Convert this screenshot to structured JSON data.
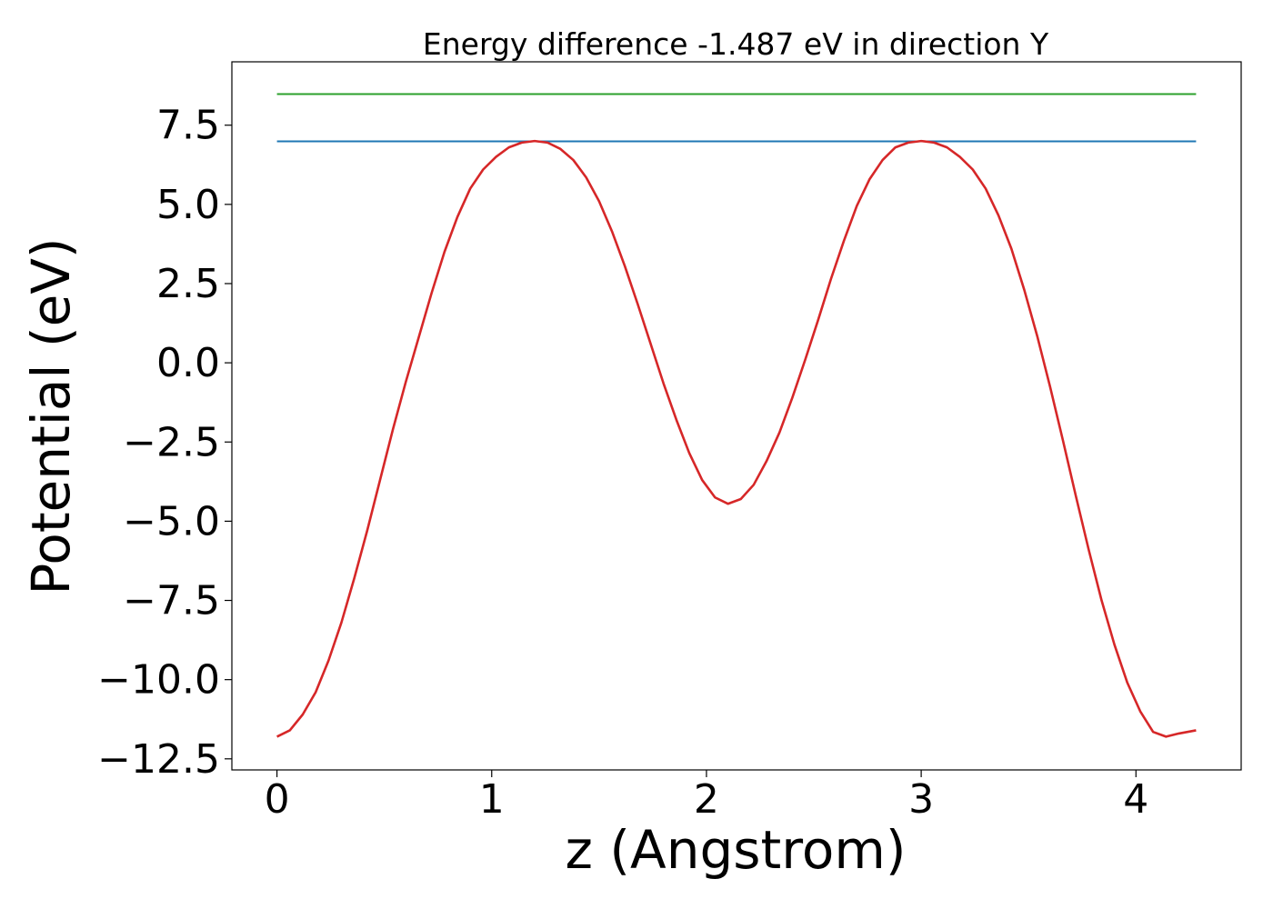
{
  "chart_data": {
    "type": "line",
    "title": "Energy difference -1.487 eV in direction Y",
    "xlabel": "z (Angstrom)",
    "ylabel": "Potential (eV)",
    "xlim": [
      -0.21,
      4.49
    ],
    "ylim": [
      -12.85,
      9.5
    ],
    "xticks": [
      0,
      1,
      2,
      3,
      4
    ],
    "xtick_labels": [
      "0",
      "1",
      "2",
      "3",
      "4"
    ],
    "yticks": [
      7.5,
      5.0,
      2.5,
      0.0,
      -2.5,
      -5.0,
      -7.5,
      -10.0,
      -12.5
    ],
    "ytick_labels": [
      "7.5",
      "5.0",
      "2.5",
      "0.0",
      "−2.5",
      "−5.0",
      "−7.5",
      "−10.0",
      "−12.5"
    ],
    "grid": false,
    "series": [
      {
        "color": "#d62728",
        "x": [
          0,
          0.06,
          0.12,
          0.18,
          0.24,
          0.3,
          0.36,
          0.42,
          0.48,
          0.54,
          0.6,
          0.66,
          0.72,
          0.78,
          0.84,
          0.9,
          0.96,
          1.02,
          1.08,
          1.14,
          1.2,
          1.26,
          1.32,
          1.38,
          1.44,
          1.5,
          1.56,
          1.62,
          1.68,
          1.74,
          1.8,
          1.86,
          1.92,
          1.98,
          2.04,
          2.1,
          2.16,
          2.22,
          2.28,
          2.34,
          2.4,
          2.46,
          2.52,
          2.58,
          2.64,
          2.7,
          2.76,
          2.82,
          2.88,
          2.94,
          3.0,
          3.06,
          3.12,
          3.18,
          3.24,
          3.3,
          3.36,
          3.42,
          3.48,
          3.54,
          3.6,
          3.66,
          3.72,
          3.78,
          3.84,
          3.9,
          3.96,
          4.02,
          4.08,
          4.14,
          4.2,
          4.28
        ],
        "y": [
          -11.8,
          -11.6,
          -11.1,
          -10.4,
          -9.4,
          -8.2,
          -6.8,
          -5.3,
          -3.7,
          -2.1,
          -0.6,
          0.8,
          2.2,
          3.5,
          4.6,
          5.5,
          6.1,
          6.5,
          6.8,
          6.95,
          7.0,
          6.95,
          6.75,
          6.4,
          5.85,
          5.1,
          4.15,
          3.05,
          1.85,
          0.6,
          -0.65,
          -1.8,
          -2.85,
          -3.7,
          -4.25,
          -4.45,
          -4.3,
          -3.85,
          -3.1,
          -2.2,
          -1.1,
          0.1,
          1.35,
          2.65,
          3.85,
          4.95,
          5.8,
          6.4,
          6.8,
          6.95,
          7.0,
          6.95,
          6.8,
          6.5,
          6.1,
          5.5,
          4.65,
          3.6,
          2.3,
          0.85,
          -0.75,
          -2.45,
          -4.2,
          -5.9,
          -7.5,
          -8.9,
          -10.1,
          -11.0,
          -11.65,
          -11.8,
          -11.7,
          -11.6
        ]
      },
      {
        "color": "#1f77b4",
        "x": [
          0,
          4.28
        ],
        "y": [
          6.99,
          6.99
        ]
      },
      {
        "color": "#2ca02c",
        "x": [
          0,
          4.28
        ],
        "y": [
          8.48,
          8.48
        ]
      }
    ]
  }
}
